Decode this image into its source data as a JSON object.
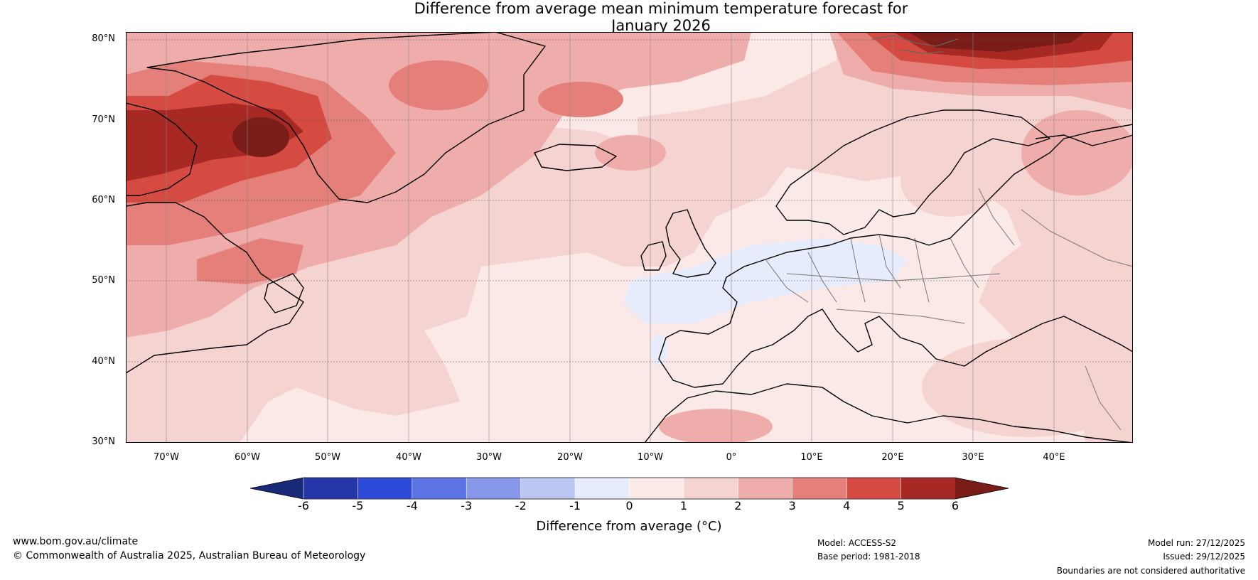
{
  "title": {
    "line1": "Difference from average mean minimum temperature forecast for",
    "line2": "January 2026"
  },
  "map": {
    "region": "North Atlantic and Europe",
    "lat_labels": [
      "80°N",
      "70°N",
      "60°N",
      "50°N",
      "40°N",
      "30°N"
    ],
    "lon_labels": [
      "70°W",
      "60°W",
      "50°W",
      "40°W",
      "30°W",
      "20°W",
      "10°W",
      "0°",
      "10°E",
      "20°E",
      "30°E",
      "40°E"
    ]
  },
  "colorbar": {
    "ticks": [
      "-6",
      "-5",
      "-4",
      "-3",
      "-2",
      "-1",
      "0",
      "1",
      "2",
      "3",
      "4",
      "5",
      "6"
    ],
    "label": "Difference from average (°C)",
    "colors": {
      "below_min": "#1a2a7a",
      "bins": [
        "#2536a8",
        "#2e4bd8",
        "#5b73e3",
        "#8797ea",
        "#bcc6f3",
        "#e6ecfb",
        "#fbe9e7",
        "#f5d3d1",
        "#eeadaa",
        "#e57f7a",
        "#d64b41",
        "#a82923"
      ],
      "above_max": "#7a1c17"
    }
  },
  "footer": {
    "website": "www.bom.gov.au/climate",
    "copyright": "© Commonwealth of Australia 2025, Australian Bureau of Meteorology",
    "model": "Model: ACCESS-S2",
    "base_period": "Base period: 1981-2018",
    "model_run": "Model run: 27/12/2025",
    "issued": "Issued: 29/12/2025",
    "disclaimer": "Boundaries are not considered authoritative"
  }
}
